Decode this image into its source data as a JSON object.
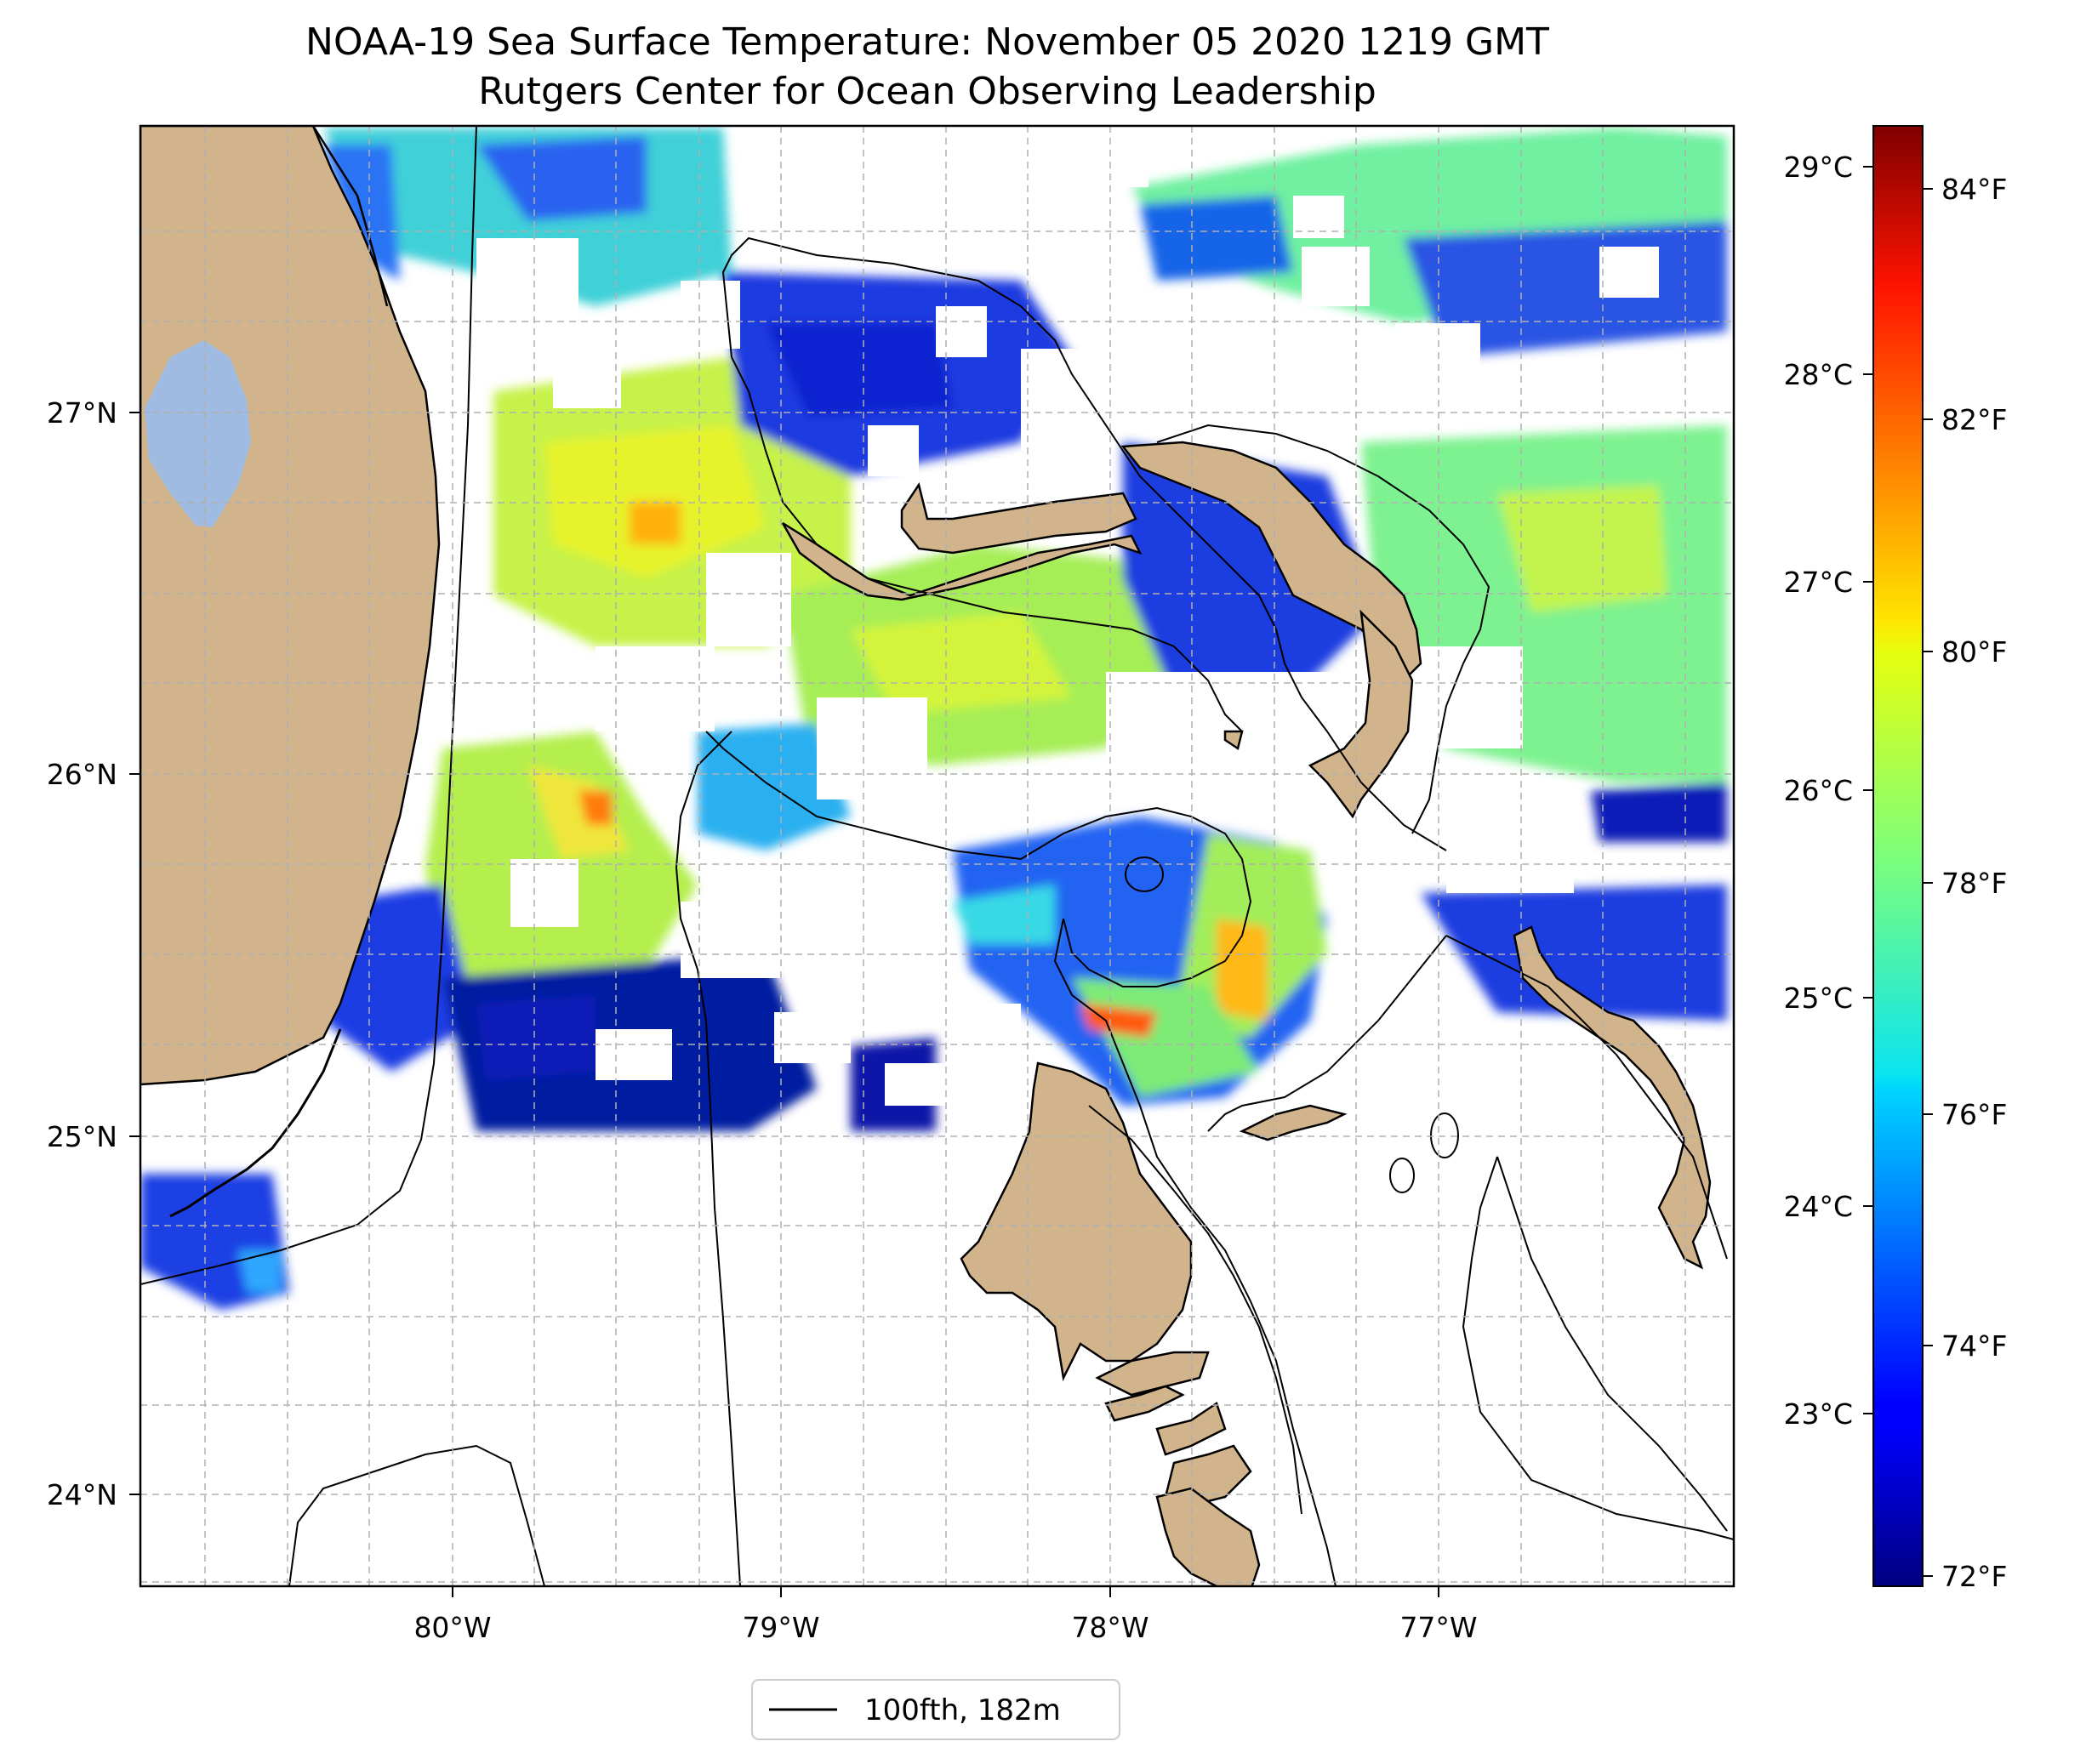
{
  "map": {
    "title_line1": "NOAA-19 Sea Surface Temperature: November 05 2020 1219 GMT",
    "title_line2": "Rutgers Center for Ocean Observing Leadership",
    "lat_ticks": [
      "27°N",
      "26°N",
      "25°N",
      "24°N"
    ],
    "lon_ticks": [
      "80°W",
      "79°W",
      "78°W",
      "77°W"
    ],
    "extent": {
      "lon_min": -80.96,
      "lon_max": -76.1,
      "lat_min": 23.75,
      "lat_max": 27.8
    },
    "land_color": "#d2b48c",
    "lake_color": "#9fbbe2",
    "legend": {
      "label": "100fth, 182m"
    }
  },
  "colorbar": {
    "colormap": "jet",
    "celsius_ticks": [
      "29°C",
      "28°C",
      "27°C",
      "26°C",
      "25°C",
      "24°C",
      "23°C"
    ],
    "fahrenheit_ticks": [
      "84°F",
      "82°F",
      "80°F",
      "78°F",
      "76°F",
      "74°F",
      "72°F"
    ],
    "range_f": [
      71.9,
      84.6
    ]
  }
}
